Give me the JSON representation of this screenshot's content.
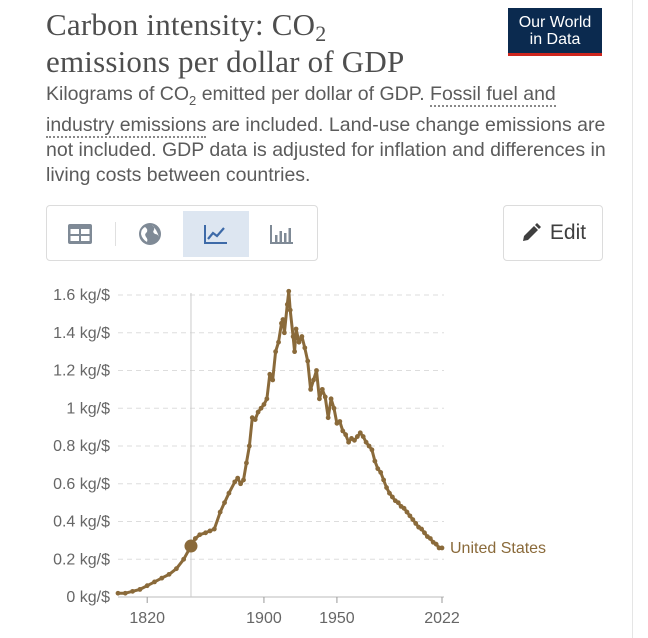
{
  "header": {
    "title_main": "Carbon intensity: CO",
    "title_sub": "2",
    "title_line2": "emissions per dollar of GDP",
    "logo_line1": "Our World",
    "logo_line2": "in Data"
  },
  "subtitle": {
    "part1": "Kilograms of CO",
    "part1_sub": "2",
    "part2": " emitted per dollar of GDP. ",
    "link": "Fossil fuel and industry emissions",
    "part3": " are included. Land-use change emissions are not included. GDP data is adjusted for inflation and differences in living costs between countries."
  },
  "tabs": [
    {
      "icon": "table-icon",
      "active": false
    },
    {
      "icon": "globe-icon",
      "active": false
    },
    {
      "icon": "line-chart-icon",
      "active": true
    },
    {
      "icon": "bar-chart-icon",
      "active": false
    }
  ],
  "edit_label": "Edit",
  "colors": {
    "series": "#8a6a3a",
    "grid": "#dddddd",
    "active_tab": "#dde6f1",
    "logo_bg": "#0b2a4f",
    "logo_accent": "#ce261e"
  },
  "chart_data": {
    "type": "line",
    "title": "Carbon intensity: CO₂ emissions per dollar of GDP",
    "xlabel": "",
    "ylabel": "",
    "xlim": [
      1800,
      2022
    ],
    "ylim": [
      0,
      1.6
    ],
    "y_ticks": [
      {
        "value": 0,
        "label": "0 kg/$"
      },
      {
        "value": 0.2,
        "label": "0.2 kg/$"
      },
      {
        "value": 0.4,
        "label": "0.4 kg/$"
      },
      {
        "value": 0.6,
        "label": "0.6 kg/$"
      },
      {
        "value": 0.8,
        "label": "0.8 kg/$"
      },
      {
        "value": 1.0,
        "label": "1 kg/$"
      },
      {
        "value": 1.2,
        "label": "1.2 kg/$"
      },
      {
        "value": 1.4,
        "label": "1.4 kg/$"
      },
      {
        "value": 1.6,
        "label": "1.6 kg/$"
      }
    ],
    "x_ticks": [
      {
        "value": 1820,
        "label": "1820"
      },
      {
        "value": 1900,
        "label": "1900"
      },
      {
        "value": 1950,
        "label": "1950"
      },
      {
        "value": 2022,
        "label": "2022"
      }
    ],
    "grid": "horizontal dashed",
    "hover_year": 1850,
    "hover_value": 0.27,
    "series": [
      {
        "name": "United States",
        "x": [
          1800,
          1805,
          1810,
          1815,
          1820,
          1825,
          1830,
          1835,
          1840,
          1845,
          1850,
          1853,
          1856,
          1860,
          1863,
          1866,
          1870,
          1873,
          1876,
          1880,
          1882,
          1884,
          1886,
          1888,
          1890,
          1892,
          1894,
          1896,
          1898,
          1900,
          1902,
          1904,
          1906,
          1908,
          1910,
          1912,
          1913,
          1914,
          1916,
          1917,
          1918,
          1920,
          1921,
          1922,
          1924,
          1926,
          1928,
          1930,
          1932,
          1934,
          1936,
          1938,
          1940,
          1942,
          1944,
          1946,
          1948,
          1950,
          1952,
          1954,
          1956,
          1958,
          1960,
          1962,
          1964,
          1966,
          1968,
          1970,
          1972,
          1974,
          1976,
          1978,
          1980,
          1982,
          1984,
          1986,
          1988,
          1990,
          1992,
          1994,
          1996,
          1998,
          2000,
          2002,
          2004,
          2006,
          2008,
          2010,
          2012,
          2014,
          2016,
          2018,
          2020,
          2022
        ],
        "y": [
          0.02,
          0.02,
          0.03,
          0.04,
          0.06,
          0.08,
          0.1,
          0.12,
          0.15,
          0.2,
          0.27,
          0.31,
          0.33,
          0.34,
          0.35,
          0.36,
          0.45,
          0.5,
          0.55,
          0.61,
          0.63,
          0.6,
          0.62,
          0.71,
          0.8,
          0.95,
          0.94,
          0.98,
          1.0,
          1.02,
          1.05,
          1.18,
          1.15,
          1.3,
          1.35,
          1.45,
          1.47,
          1.4,
          1.55,
          1.62,
          1.52,
          1.38,
          1.3,
          1.42,
          1.35,
          1.38,
          1.32,
          1.25,
          1.1,
          1.15,
          1.2,
          1.05,
          1.1,
          1.06,
          0.95,
          1.05,
          1.0,
          0.92,
          0.93,
          0.88,
          0.86,
          0.82,
          0.84,
          0.83,
          0.85,
          0.87,
          0.85,
          0.82,
          0.8,
          0.78,
          0.72,
          0.68,
          0.66,
          0.62,
          0.58,
          0.55,
          0.53,
          0.51,
          0.5,
          0.48,
          0.47,
          0.45,
          0.43,
          0.41,
          0.39,
          0.37,
          0.36,
          0.34,
          0.32,
          0.31,
          0.29,
          0.28,
          0.26,
          0.26
        ]
      }
    ]
  }
}
